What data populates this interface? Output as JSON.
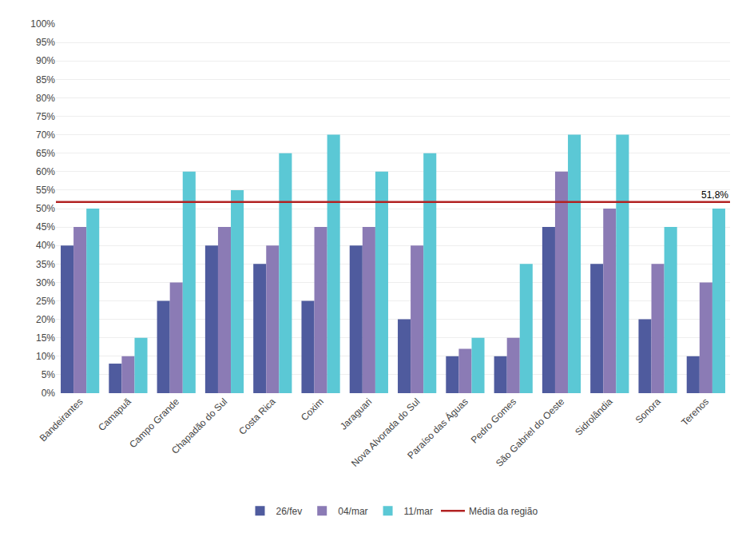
{
  "chart_data": {
    "type": "bar",
    "categories": [
      "Bandeirantes",
      "Camapuã",
      "Campo Grande",
      "Chapadão do Sul",
      "Costa Rica",
      "Coxim",
      "Jaraguari",
      "Nova Alvorada do Sul",
      "Paraíso das Águas",
      "Pedro Gomes",
      "São Gabriel do Oeste",
      "Sidrolândia",
      "Sonora",
      "Terenos"
    ],
    "series": [
      {
        "name": "26/fev",
        "color": "#4F5B9E",
        "values": [
          0.4,
          0.08,
          0.25,
          0.4,
          0.35,
          0.25,
          0.4,
          0.2,
          0.1,
          0.1,
          0.45,
          0.35,
          0.2,
          0.1
        ]
      },
      {
        "name": "04/mar",
        "color": "#8B7BB5",
        "values": [
          0.45,
          0.1,
          0.3,
          0.45,
          0.4,
          0.45,
          0.45,
          0.4,
          0.12,
          0.15,
          0.6,
          0.5,
          0.35,
          0.3
        ]
      },
      {
        "name": "11/mar",
        "color": "#5BC8D5",
        "values": [
          0.5,
          0.15,
          0.6,
          0.55,
          0.65,
          0.7,
          0.6,
          0.65,
          0.15,
          0.35,
          0.7,
          0.7,
          0.45,
          0.5
        ]
      }
    ],
    "mean_line": {
      "name": "Média da região",
      "value": 0.518,
      "label": "51,8%",
      "color": "#B22222"
    },
    "ylim": [
      0,
      1.0
    ],
    "yticks": [
      {
        "value": 0,
        "label": "0%"
      },
      {
        "value": 0.05,
        "label": "5%"
      },
      {
        "value": 0.1,
        "label": "10%"
      },
      {
        "value": 0.15,
        "label": "15%"
      },
      {
        "value": 0.2,
        "label": "20%"
      },
      {
        "value": 0.25,
        "label": "25%"
      },
      {
        "value": 0.3,
        "label": "30%"
      },
      {
        "value": 0.35,
        "label": "35%"
      },
      {
        "value": 0.4,
        "label": "40%"
      },
      {
        "value": 0.45,
        "label": "45%"
      },
      {
        "value": 0.5,
        "label": "50%"
      },
      {
        "value": 0.55,
        "label": "55%"
      },
      {
        "value": 0.6,
        "label": "60%"
      },
      {
        "value": 0.65,
        "label": "65%"
      },
      {
        "value": 0.7,
        "label": "70%"
      },
      {
        "value": 0.75,
        "label": "75%"
      },
      {
        "value": 0.8,
        "label": "80%"
      },
      {
        "value": 0.85,
        "label": "85%"
      },
      {
        "value": 0.9,
        "label": "90%"
      },
      {
        "value": 0.95,
        "label": "95%"
      },
      {
        "value": 1.0,
        "label": "100%"
      }
    ],
    "grid": true,
    "legend": "bottom"
  }
}
